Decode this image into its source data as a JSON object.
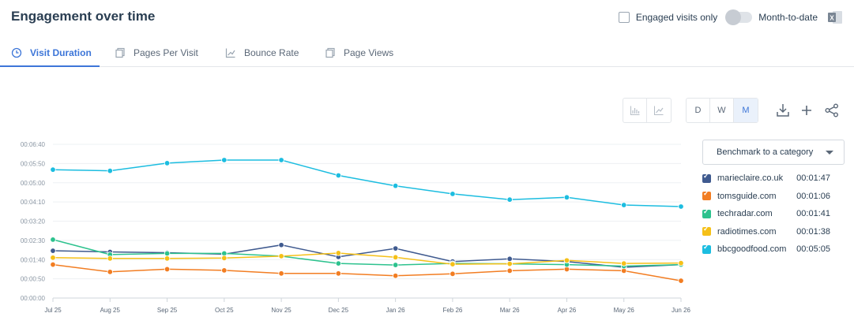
{
  "header": {
    "title": "Engagement over time",
    "engaged_label": "Engaged visits only",
    "mtd_label": "Month-to-date"
  },
  "tabs": [
    {
      "label": "Visit Duration",
      "icon": "clock-icon",
      "active": true
    },
    {
      "label": "Pages Per Visit",
      "icon": "pages-icon",
      "active": false
    },
    {
      "label": "Bounce Rate",
      "icon": "trend-icon",
      "active": false
    },
    {
      "label": "Page Views",
      "icon": "pages-icon",
      "active": false
    }
  ],
  "granularity": {
    "d": "D",
    "w": "W",
    "m": "M",
    "selected": "M"
  },
  "benchmark": {
    "label": "Benchmark to a category"
  },
  "colors": {
    "accent": "#3d76d8",
    "marieclaire": "#3f5a8f",
    "tomsguide": "#f27d22",
    "techradar": "#2dc28e",
    "radiotimes": "#f5c018",
    "bbcgoodfood": "#1cbde0"
  },
  "chart_data": {
    "type": "line",
    "x": [
      "Jul 25",
      "Aug 25",
      "Sep 25",
      "Oct 25",
      "Nov 25",
      "Dec 25",
      "Jan 26",
      "Feb 26",
      "Mar 26",
      "Apr 26",
      "May 26",
      "Jun 26"
    ],
    "y_ticks": [
      "00:00:00",
      "00:00:50",
      "00:01:40",
      "00:02:30",
      "00:03:20",
      "00:04:10",
      "00:05:00",
      "00:05:50",
      "00:06:40"
    ],
    "ylim_seconds": [
      0,
      400
    ],
    "grid": true,
    "legend_position": "right",
    "series": [
      {
        "name": "marieclaire.co.uk",
        "summary": "00:01:47",
        "color_key": "marieclaire",
        "values": [
          123,
          120,
          118,
          114,
          138,
          107,
          129,
          95,
          102,
          95,
          80,
          87
        ]
      },
      {
        "name": "tomsguide.com",
        "summary": "00:01:06",
        "color_key": "tomsguide",
        "values": [
          87,
          68,
          75,
          72,
          64,
          64,
          58,
          63,
          71,
          75,
          71,
          45
        ]
      },
      {
        "name": "techradar.com",
        "summary": "00:01:41",
        "color_key": "techradar",
        "values": [
          152,
          113,
          116,
          116,
          109,
          90,
          86,
          90,
          89,
          87,
          83,
          87
        ]
      },
      {
        "name": "radiotimes.com",
        "summary": "00:01:38",
        "color_key": "radiotimes",
        "values": [
          105,
          103,
          103,
          104,
          109,
          117,
          106,
          88,
          89,
          98,
          90,
          91
        ]
      },
      {
        "name": "bbcgoodfood.com",
        "summary": "00:05:05",
        "color_key": "bbcgoodfood",
        "values": [
          334,
          331,
          351,
          359,
          359,
          319,
          292,
          271,
          256,
          262,
          242,
          238
        ]
      }
    ]
  }
}
